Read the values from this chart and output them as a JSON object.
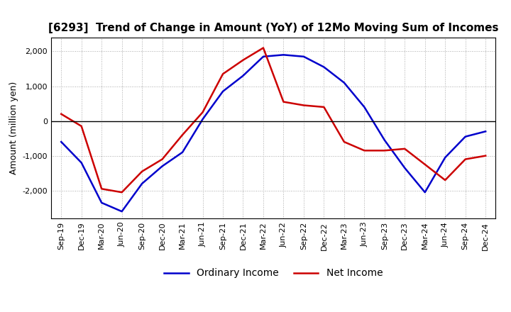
{
  "title": "[6293]  Trend of Change in Amount (YoY) of 12Mo Moving Sum of Incomes",
  "ylabel": "Amount (million yen)",
  "ylim": [
    -2800,
    2400
  ],
  "yticks": [
    -2000,
    -1000,
    0,
    1000,
    2000
  ],
  "x_labels": [
    "Sep-19",
    "Dec-19",
    "Mar-20",
    "Jun-20",
    "Sep-20",
    "Dec-20",
    "Mar-21",
    "Jun-21",
    "Sep-21",
    "Dec-21",
    "Mar-22",
    "Jun-22",
    "Sep-22",
    "Dec-22",
    "Mar-23",
    "Jun-23",
    "Sep-23",
    "Dec-23",
    "Mar-24",
    "Jun-24",
    "Sep-24",
    "Dec-24"
  ],
  "ordinary_income": [
    -600,
    -1200,
    -2350,
    -2600,
    -1800,
    -1300,
    -900,
    50,
    850,
    1300,
    1850,
    1900,
    1850,
    1550,
    1100,
    400,
    -550,
    -1350,
    -2050,
    -1050,
    -450,
    -300
  ],
  "net_income": [
    200,
    -150,
    -1950,
    -2050,
    -1450,
    -1100,
    -400,
    250,
    1350,
    1750,
    2100,
    550,
    450,
    400,
    -600,
    -850,
    -850,
    -800,
    -1250,
    -1700,
    -1100,
    -1000
  ],
  "ordinary_color": "#0000cc",
  "net_color": "#cc0000",
  "line_width": 1.8,
  "background_color": "#ffffff",
  "grid_color": "#aaaaaa",
  "title_fontsize": 11,
  "label_fontsize": 9,
  "tick_fontsize": 8
}
